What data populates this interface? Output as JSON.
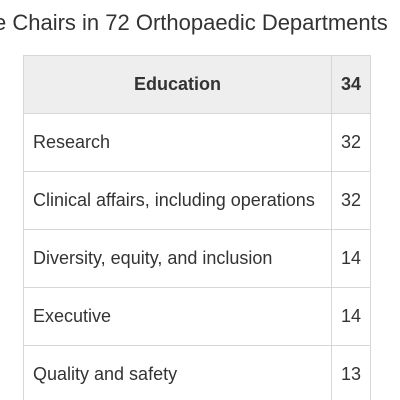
{
  "title": "e Chairs in 72 Orthopaedic Departments",
  "table": {
    "header": {
      "label": "Education",
      "value": "34"
    },
    "rows": [
      {
        "label": "Research",
        "value": "32"
      },
      {
        "label": "Clinical affairs, including operations",
        "value": "32"
      },
      {
        "label": "Diversity, equity, and inclusion",
        "value": "14"
      },
      {
        "label": "Executive",
        "value": "14"
      },
      {
        "label": "Quality and safety",
        "value": "13"
      }
    ]
  }
}
